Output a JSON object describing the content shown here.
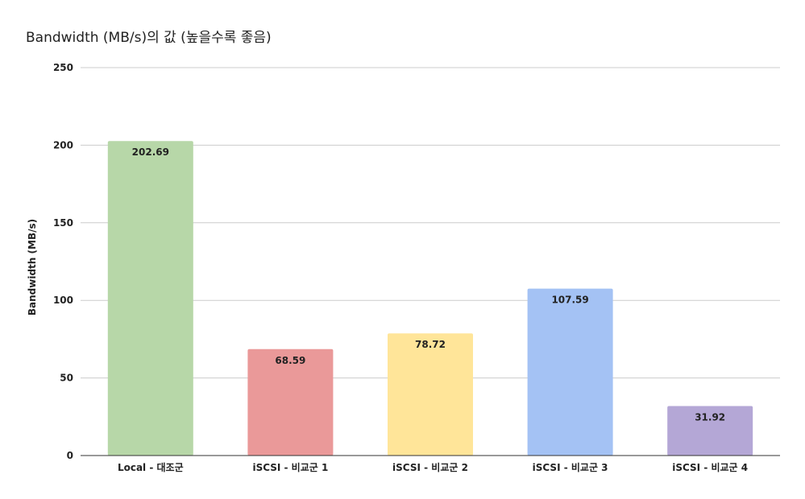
{
  "chart_data": {
    "type": "bar",
    "title": "Bandwidth (MB/s)의 값 (높을수록 좋음)",
    "xlabel": "",
    "ylabel": "Bandwidth (MB/s)",
    "ylim": [
      0,
      250
    ],
    "yticks": [
      0,
      50,
      100,
      150,
      200,
      250
    ],
    "grid": true,
    "legend": "none",
    "categories": [
      "Local - 대조군",
      "iSCSI - 비교군 1",
      "iSCSI - 비교군 2",
      "iSCSI - 비교군 3",
      "iSCSI - 비교군 4"
    ],
    "values": [
      202.69,
      68.59,
      78.72,
      107.59,
      31.92
    ],
    "data_labels": [
      "202.69",
      "68.59",
      "78.72",
      "107.59",
      "31.92"
    ],
    "colors": [
      "#b7d7a8",
      "#ea9999",
      "#ffe599",
      "#a4c2f4",
      "#b4a7d6"
    ]
  }
}
